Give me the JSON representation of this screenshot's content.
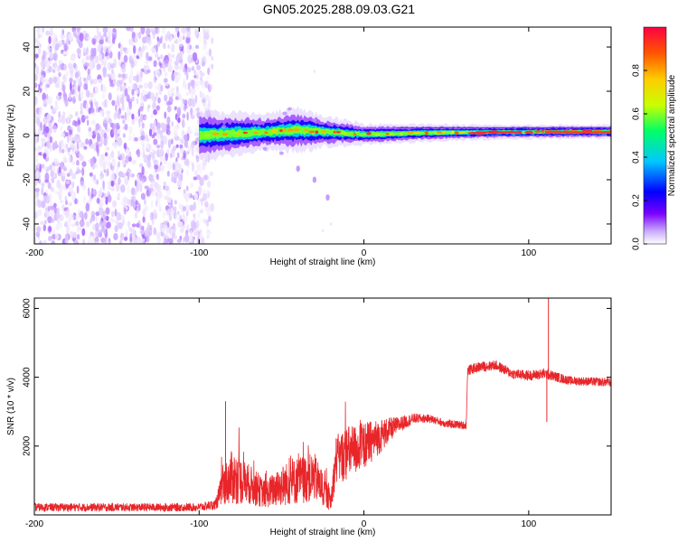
{
  "title": "GN05.2025.288.09.03.G21",
  "chart_data": [
    {
      "type": "heatmap",
      "name": "spectrogram",
      "xlabel": "Height of straight line (km)",
      "ylabel": "Frequency (Hz)",
      "xlim": [
        -200,
        150
      ],
      "ylim": [
        -49,
        49
      ],
      "xticks": [
        -200,
        -100,
        0,
        100
      ],
      "yticks": [
        -40,
        -20,
        0,
        20,
        40
      ],
      "colorbar": {
        "label": "Normalized spectral amplitude",
        "range": [
          0.0,
          1.0
        ],
        "ticks": [
          0.0,
          0.2,
          0.4,
          0.6,
          0.8
        ],
        "tick_labels": [
          "0.0",
          "0.2",
          "0.4",
          "0.6",
          "0.8"
        ],
        "colors": [
          "#ffffff",
          "#c9a8ff",
          "#7a00ff",
          "#0000ff",
          "#00c8ff",
          "#00ff66",
          "#c8ff00",
          "#ffcc00",
          "#ff5500",
          "#ff0044"
        ]
      },
      "features": {
        "noise_region_x": [
          -200,
          -95
        ],
        "signal_start_x": -100,
        "signal_center_hz": 1.5,
        "signal_band": [
          [
            -100,
            0,
            3.5
          ],
          [
            -60,
            1.5,
            2.5
          ],
          [
            -40,
            2.5,
            3
          ],
          [
            -20,
            1.5,
            2
          ],
          [
            0,
            0.5,
            1.5
          ],
          [
            40,
            1.2,
            1.2
          ],
          [
            80,
            1.5,
            1.0
          ],
          [
            150,
            1.8,
            1.0
          ]
        ],
        "side_streak": [
          [
            -40,
            -15
          ],
          [
            -30,
            -20
          ],
          [
            -22,
            -28
          ]
        ]
      }
    },
    {
      "type": "line",
      "name": "snr",
      "xlabel": "Height of straight line (km)",
      "ylabel": "SNR (10 * v/v)",
      "xlim": [
        -200,
        150
      ],
      "ylim": [
        0,
        6300
      ],
      "xticks": [
        -200,
        -100,
        0,
        100
      ],
      "yticks": [
        2000,
        4000,
        6000
      ],
      "color": "#e8262a",
      "series_envelope": [
        {
          "x": -200,
          "y": 220,
          "amp": 120
        },
        {
          "x": -100,
          "y": 220,
          "amp": 120
        },
        {
          "x": -90,
          "y": 300,
          "amp": 150
        },
        {
          "x": -86,
          "y": 800,
          "amp": 500
        },
        {
          "x": -80,
          "y": 1100,
          "amp": 800
        },
        {
          "x": -70,
          "y": 900,
          "amp": 600
        },
        {
          "x": -60,
          "y": 600,
          "amp": 400
        },
        {
          "x": -50,
          "y": 850,
          "amp": 600
        },
        {
          "x": -40,
          "y": 1000,
          "amp": 700
        },
        {
          "x": -30,
          "y": 1100,
          "amp": 700
        },
        {
          "x": -20,
          "y": 400,
          "amp": 300
        },
        {
          "x": -17,
          "y": 1600,
          "amp": 700
        },
        {
          "x": -10,
          "y": 1800,
          "amp": 800
        },
        {
          "x": 0,
          "y": 2000,
          "amp": 700
        },
        {
          "x": 10,
          "y": 2300,
          "amp": 500
        },
        {
          "x": 20,
          "y": 2600,
          "amp": 250
        },
        {
          "x": 30,
          "y": 2800,
          "amp": 150
        },
        {
          "x": 40,
          "y": 2800,
          "amp": 120
        },
        {
          "x": 50,
          "y": 2650,
          "amp": 120
        },
        {
          "x": 62,
          "y": 2600,
          "amp": 120
        },
        {
          "x": 63,
          "y": 4200,
          "amp": 150
        },
        {
          "x": 70,
          "y": 4300,
          "amp": 150
        },
        {
          "x": 80,
          "y": 4350,
          "amp": 150
        },
        {
          "x": 90,
          "y": 4100,
          "amp": 150
        },
        {
          "x": 100,
          "y": 4050,
          "amp": 150
        },
        {
          "x": 110,
          "y": 4100,
          "amp": 160
        },
        {
          "x": 125,
          "y": 3900,
          "amp": 130
        },
        {
          "x": 150,
          "y": 3850,
          "amp": 130
        }
      ],
      "spikes": [
        {
          "x": 112,
          "y": 6300
        },
        {
          "x": 111,
          "y": 2700
        },
        {
          "x": -84,
          "y": 3300
        }
      ]
    }
  ]
}
